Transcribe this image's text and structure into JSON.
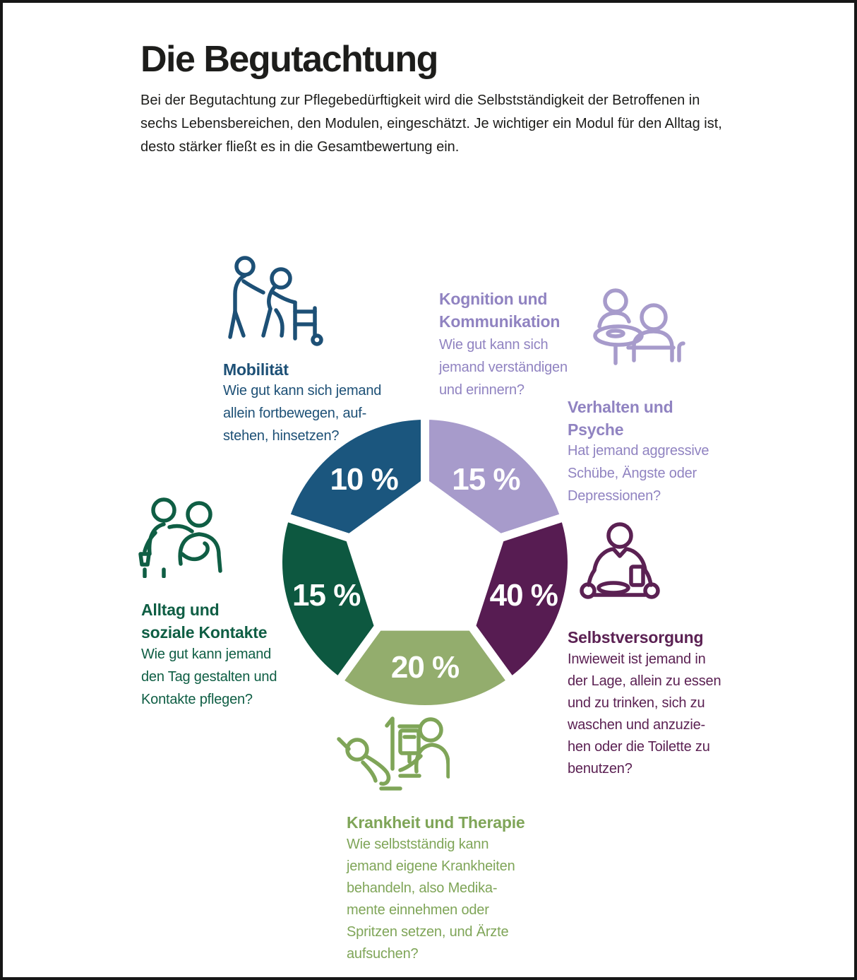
{
  "page": {
    "title": "Die Begutachtung",
    "intro": [
      "Bei der Begutachtung zur Pflegebedürftigkeit wird die Selbstständigkeit der Betroffenen in",
      "sechs Lebensbereichen, den Modulen, eingeschätzt. Je wichtiger ein Modul für den Alltag ist,",
      "desto stärker fließt es in die Gesamtbewertung ein."
    ],
    "ink_color": "#1d1d1b"
  },
  "sections": {
    "mobilitaet": {
      "title": "Mobilität",
      "body": [
        "Wie gut kann sich jemand",
        "allein fortbewegen, auf-",
        "stehen, hinsetzen?"
      ],
      "color": "#1d5076",
      "icon": "walker-assist-icon"
    },
    "kognition": {
      "title": [
        "Kognition und",
        "Kommunikation"
      ],
      "body": [
        "Wie gut kann sich",
        "jemand verständigen",
        "und erinnern?"
      ],
      "color": "#9083c1",
      "icon_color": "#a79bcb",
      "icon": "table-conversation-icon"
    },
    "verhalten": {
      "title": [
        "Verhalten und",
        "Psyche"
      ],
      "body": [
        "Hat jemand aggressive",
        "Schübe, Ängste oder",
        "Depressionen?"
      ],
      "color": "#9083c1"
    },
    "selbstversorgung": {
      "title": "Selbstversorgung",
      "body": [
        "Inwieweit ist jemand in",
        "der Lage, allein zu essen",
        "und zu trinken, sich zu",
        "waschen und anzuzie-",
        "hen oder die Toilette zu",
        "benutzen?"
      ],
      "color": "#5b2153",
      "icon": "meal-tray-icon"
    },
    "krankheit": {
      "title": "Krankheit und Therapie",
      "body": [
        "Wie selbstständig kann",
        "jemand eigene Krankheiten",
        "behandeln, also Medika-",
        "mente einnehmen oder",
        "Spritzen setzen, und Ärzte",
        "aufsuchen?"
      ],
      "color": "#7fa558",
      "icon": "patient-iv-care-icon"
    },
    "alltag": {
      "title": [
        "Alltag und",
        "soziale Kontakte"
      ],
      "body": [
        "Wie gut kann jemand",
        "den Tag gestalten und",
        "Kontakte pflegen?"
      ],
      "color": "#0f5e44",
      "icon": "companions-icon"
    }
  },
  "chart_data": {
    "type": "pie",
    "unit": "%",
    "equal_segments": true,
    "inner_radius": 112,
    "outer_radius": 208,
    "label_radius": 147,
    "segments": [
      {
        "id": "mobilitaet",
        "label": "Mobilität",
        "value": 10,
        "display": "10 %",
        "color": "#1b567e",
        "start": 90,
        "end": 162
      },
      {
        "id": "kognition-verhalten",
        "label": "Kognition und Kommunikation / Verhalten und Psyche",
        "value": 15,
        "display": "15 %",
        "color": "#a79bcb",
        "start": 18,
        "end": 90
      },
      {
        "id": "selbstversorgung",
        "label": "Selbstversorgung",
        "value": 40,
        "display": "40 %",
        "color": "#571c52",
        "start": -54,
        "end": 18
      },
      {
        "id": "krankheit",
        "label": "Krankheit und Therapie",
        "value": 20,
        "display": "20 %",
        "color": "#93ad6d",
        "start": -126,
        "end": -54
      },
      {
        "id": "alltag",
        "label": "Alltag und soziale Kontakte",
        "value": 15,
        "display": "15 %",
        "color": "#0d5840",
        "start": 162,
        "end": 234
      }
    ]
  }
}
